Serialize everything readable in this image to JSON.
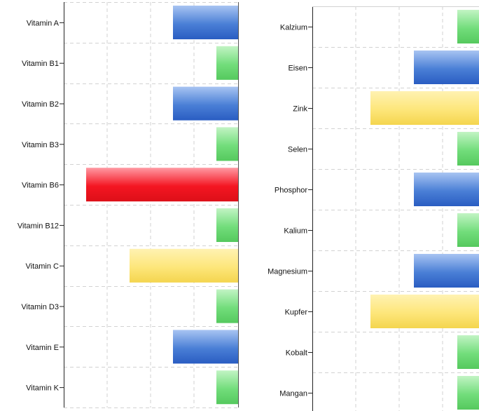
{
  "chart_data": [
    {
      "type": "bar",
      "orientation": "horizontal",
      "title": "",
      "xlabel": "",
      "ylabel": "",
      "grid": true,
      "legend": "none",
      "categories": [
        "Vitamin A",
        "Vitamin B1",
        "Vitamin B2",
        "Vitamin B3",
        "Vitamin B6",
        "Vitamin B12",
        "Vitamin C",
        "Vitamin D3",
        "Vitamin E",
        "Vitamin K"
      ],
      "values": [
        1.5,
        0.5,
        1.5,
        0.5,
        3.5,
        0.5,
        2.5,
        0.5,
        1.5,
        0.5
      ],
      "bar_colors": [
        "blue",
        "green",
        "blue",
        "green",
        "red",
        "green",
        "yellow",
        "green",
        "blue",
        "green"
      ],
      "xlim": [
        4,
        0
      ]
    },
    {
      "type": "bar",
      "orientation": "horizontal",
      "title": "",
      "xlabel": "",
      "ylabel": "",
      "grid": true,
      "legend": "none",
      "categories": [
        "Kalzium",
        "Eisen",
        "Zink",
        "Selen",
        "Phosphor",
        "Kalium",
        "Magnesium",
        "Kupfer",
        "Kobalt",
        "Mangan"
      ],
      "values": [
        0.5,
        1.5,
        2.5,
        0.5,
        1.5,
        0.5,
        1.5,
        2.5,
        0.5,
        0.5
      ],
      "bar_colors": [
        "green",
        "blue",
        "yellow",
        "green",
        "blue",
        "green",
        "blue",
        "yellow",
        "green",
        "green"
      ]
    }
  ],
  "colors": {
    "red": [
      "#ff9aa3",
      "#f41622",
      "#dd0f18"
    ],
    "blue": [
      "#a8c4f2",
      "#4a7fd6",
      "#2a5dc2"
    ],
    "green": [
      "#c2f4c4",
      "#72dd7b",
      "#55c95e"
    ],
    "yellow": [
      "#fff2b2",
      "#fde67a",
      "#f4d54e"
    ],
    "grid": "#d2d2d2",
    "axis": "#222222"
  }
}
